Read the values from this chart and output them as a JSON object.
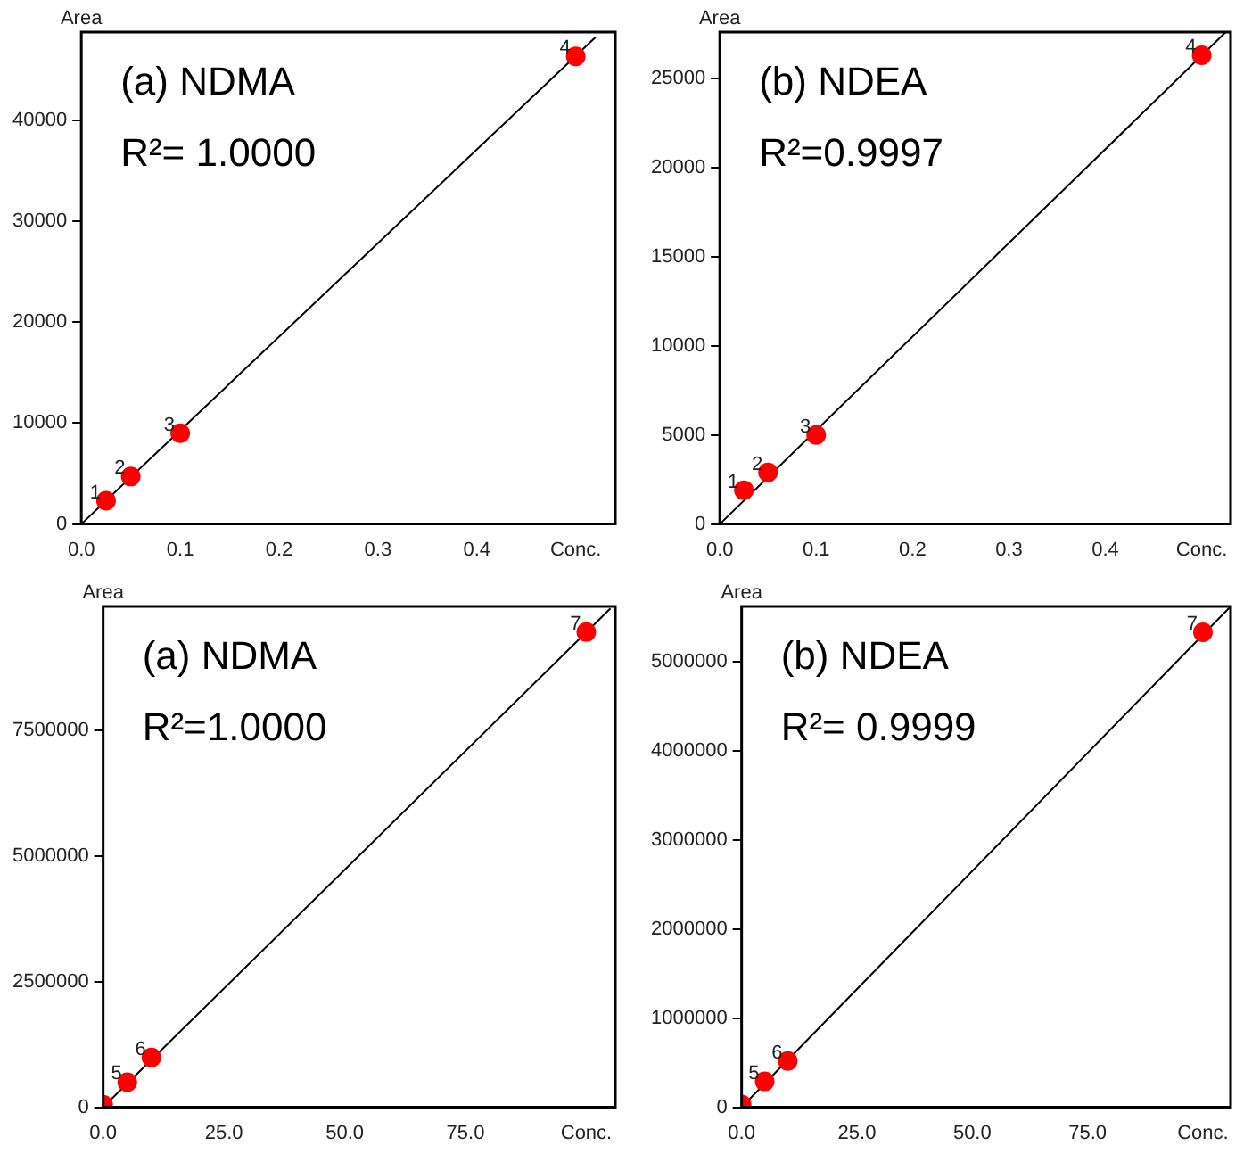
{
  "chart_data": [
    {
      "type": "scatter",
      "title": "(a) NDMA",
      "ylabel": "Area",
      "xlim": [
        0,
        0.54
      ],
      "xticks": [
        {
          "value": 0,
          "label": "0.0"
        },
        0.1,
        0.2,
        0.3,
        0.4,
        {
          "value": 0.5,
          "label": "Conc."
        }
      ],
      "ylim": [
        0,
        48700
      ],
      "yticks": [
        0,
        10000,
        20000,
        30000,
        40000
      ],
      "legend": false,
      "series": [
        {
          "type": "scatter",
          "marker": "circle",
          "color": "#ff0000",
          "x": [
            0.025,
            0.05,
            0.1,
            0.5
          ],
          "values": [
            2300,
            4700,
            9000,
            46300
          ]
        },
        {
          "type": "line",
          "marker": "none",
          "color": "#000000",
          "x": [
            0,
            0.52
          ],
          "values": [
            0,
            48200
          ]
        }
      ],
      "annotations": [
        "R²= 1.0000",
        {
          "text": "1",
          "x": 0.025,
          "y": 2300
        },
        {
          "text": "2",
          "x": 0.05,
          "y": 4700
        },
        {
          "text": "3",
          "x": 0.1,
          "y": 9000
        },
        {
          "text": "4",
          "x": 0.5,
          "y": 46300
        }
      ]
    },
    {
      "type": "scatter",
      "title": "(b) NDEA",
      "ylabel": "Area",
      "xlim": [
        0,
        0.53
      ],
      "xticks": [
        {
          "value": 0,
          "label": "0.0"
        },
        0.1,
        0.2,
        0.3,
        0.4,
        {
          "value": 0.5,
          "label": "Conc."
        }
      ],
      "ylim": [
        0,
        27600
      ],
      "yticks": [
        0,
        5000,
        10000,
        15000,
        20000,
        25000
      ],
      "legend": false,
      "series": [
        {
          "type": "scatter",
          "marker": "circle",
          "color": "#ff0000",
          "x": [
            0.025,
            0.05,
            0.1,
            0.5
          ],
          "values": [
            1900,
            2900,
            5000,
            26300
          ]
        },
        {
          "type": "line",
          "marker": "none",
          "color": "#000000",
          "x": [
            0,
            0.525
          ],
          "values": [
            0,
            27600
          ]
        }
      ],
      "annotations": [
        "R²=0.9997",
        {
          "text": "1",
          "x": 0.025,
          "y": 1900
        },
        {
          "text": "2",
          "x": 0.05,
          "y": 2900
        },
        {
          "text": "3",
          "x": 0.1,
          "y": 5000
        },
        {
          "text": "4",
          "x": 0.5,
          "y": 26300
        }
      ]
    },
    {
      "type": "scatter",
      "title": "(a) NDMA",
      "ylabel": "Area",
      "xlim": [
        0,
        106
      ],
      "xticks": [
        {
          "value": 0,
          "label": "0.0"
        },
        {
          "value": 25,
          "label": "25.0"
        },
        {
          "value": 50,
          "label": "50.0"
        },
        {
          "value": 75,
          "label": "75.0"
        },
        {
          "value": 100,
          "label": "Conc."
        }
      ],
      "ylim": [
        0,
        9960000
      ],
      "yticks": [
        0,
        2500000,
        5000000,
        7500000
      ],
      "legend": false,
      "series": [
        {
          "type": "scatter",
          "marker": "circle",
          "color": "#ff0000",
          "x": [
            0,
            5,
            10,
            100
          ],
          "values": [
            50000,
            500000,
            990000,
            9450000
          ]
        },
        {
          "type": "line",
          "marker": "none",
          "color": "#000000",
          "x": [
            0,
            105
          ],
          "values": [
            0,
            9920000
          ]
        }
      ],
      "annotations": [
        "R²=1.0000",
        {
          "text": "5",
          "x": 5,
          "y": 500000
        },
        {
          "text": "6",
          "x": 10,
          "y": 990000
        },
        {
          "text": "7",
          "x": 100,
          "y": 9450000
        }
      ]
    },
    {
      "type": "scatter",
      "title": "(b) NDEA",
      "ylabel": "Area",
      "xlim": [
        0,
        106
      ],
      "xticks": [
        {
          "value": 0,
          "label": "0.0"
        },
        {
          "value": 25,
          "label": "25.0"
        },
        {
          "value": 50,
          "label": "50.0"
        },
        {
          "value": 75,
          "label": "75.0"
        },
        {
          "value": 100,
          "label": "Conc."
        }
      ],
      "ylim": [
        0,
        5620000
      ],
      "yticks": [
        0,
        1000000,
        2000000,
        3000000,
        4000000,
        5000000
      ],
      "legend": false,
      "series": [
        {
          "type": "scatter",
          "marker": "circle",
          "color": "#ff0000",
          "x": [
            0,
            5,
            10,
            100
          ],
          "values": [
            30000,
            290000,
            520000,
            5330000
          ]
        },
        {
          "type": "line",
          "marker": "none",
          "color": "#000000",
          "x": [
            0,
            106
          ],
          "values": [
            0,
            5620000
          ]
        }
      ],
      "annotations": [
        "R²= 0.9999",
        {
          "text": "5",
          "x": 5,
          "y": 290000
        },
        {
          "text": "6",
          "x": 10,
          "y": 520000
        },
        {
          "text": "7",
          "x": 100,
          "y": 5330000
        }
      ]
    }
  ]
}
